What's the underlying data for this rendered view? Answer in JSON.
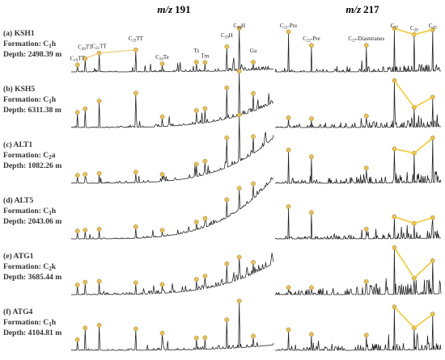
{
  "chart_data": {
    "type": "line",
    "chart_kind": "chromatogram panels",
    "columns": [
      {
        "id": "m191",
        "label_prefix": "m/z",
        "label_value": "191"
      },
      {
        "id": "m217",
        "label_prefix": "m/z",
        "label_value": "217"
      }
    ],
    "samples": [
      {
        "id": "a",
        "name": "(a) KSH1",
        "formation_prefix": "Formation: C",
        "formation_sub": "1",
        "formation_suffix": "h",
        "depth": "Depth: 2498.39 m",
        "baseline_rise": 0.06,
        "noise": 0.08
      },
      {
        "id": "b",
        "name": "(b) KSH5",
        "formation_prefix": "Formation: C",
        "formation_sub": "1",
        "formation_suffix": "h",
        "depth": "Depth: 6311.38 m",
        "baseline_rise": 0.55,
        "noise": 0.1
      },
      {
        "id": "c",
        "name": "(c) ALT1",
        "formation_prefix": "Formation: C",
        "formation_sub": "2",
        "formation_suffix": "a",
        "depth": "Depth: 1082.26 m",
        "baseline_rise": 1.0,
        "noise": 0.12
      },
      {
        "id": "d",
        "name": "(d) ALT5",
        "formation_prefix": "Formation: C",
        "formation_sub": "1",
        "formation_suffix": "h",
        "depth": "Depth: 2043.06 m",
        "baseline_rise": 1.35,
        "noise": 0.08
      },
      {
        "id": "e",
        "name": "(e) ATG1",
        "formation_prefix": "Formation: C",
        "formation_sub": "2",
        "formation_suffix": "k",
        "depth": "Depth: 3685.44 m",
        "baseline_rise": 0.7,
        "noise": 0.16
      },
      {
        "id": "f",
        "name": "(f) ATG4",
        "formation_prefix": "Formation: C",
        "formation_sub": "1",
        "formation_suffix": "h",
        "depth": "Depth: 4104.81 m",
        "baseline_rise": 0.12,
        "noise": 0.1
      }
    ],
    "m191_compound_labels": [
      {
        "key": "C19TT",
        "base": "C",
        "sub": "19",
        "suffix": "TT"
      },
      {
        "key": "C20TT",
        "base": "C",
        "sub": "20",
        "suffix": "TT"
      },
      {
        "key": "C21TT",
        "base": "C",
        "sub": "21",
        "suffix": "TT"
      },
      {
        "key": "C23TT",
        "base": "C",
        "sub": "23",
        "suffix": "TT"
      },
      {
        "key": "C24Te",
        "base": "C",
        "sub": "24",
        "suffix": "Te"
      },
      {
        "key": "Ts",
        "base": "Ts",
        "sub": "",
        "suffix": ""
      },
      {
        "key": "Tm",
        "base": "Tm",
        "sub": "",
        "suffix": ""
      },
      {
        "key": "C29H",
        "base": "C",
        "sub": "29",
        "suffix": "H"
      },
      {
        "key": "C30H",
        "base": "C",
        "sub": "30",
        "suffix": "H"
      },
      {
        "key": "Ga",
        "base": "Ga",
        "sub": "",
        "suffix": ""
      }
    ],
    "m217_compound_labels": [
      {
        "key": "C21Pre",
        "base": "C",
        "sub": "21",
        "suffix": "-Pre"
      },
      {
        "key": "C22Pre",
        "base": "C",
        "sub": "22",
        "suffix": "-Pre"
      },
      {
        "key": "C27Dia",
        "base": "C",
        "sub": "27",
        "suffix": "-Diasteranes"
      },
      {
        "key": "C27",
        "base": "C",
        "sub": "27",
        "suffix": ""
      },
      {
        "key": "C28",
        "base": "C",
        "sub": "28",
        "suffix": ""
      },
      {
        "key": "C29",
        "base": "C",
        "sub": "29",
        "suffix": ""
      }
    ],
    "m191_peak_positions": [
      0.03,
      0.07,
      0.14,
      0.32,
      0.45,
      0.62,
      0.66,
      0.77,
      0.83,
      0.9
    ],
    "m191_peak_heights": {
      "a": [
        0.12,
        0.26,
        0.38,
        0.45,
        0.14,
        0.17,
        0.16,
        0.5,
        0.9,
        0.14
      ],
      "b": [
        0.3,
        0.38,
        0.55,
        0.72,
        0.18,
        0.26,
        0.28,
        0.65,
        0.95,
        0.36
      ],
      "c": [
        0.14,
        0.16,
        0.18,
        0.2,
        0.12,
        0.24,
        0.26,
        0.62,
        1.0,
        0.34
      ],
      "d": [
        0.14,
        0.16,
        0.18,
        0.22,
        0.1,
        0.14,
        0.16,
        0.36,
        0.44,
        0.3
      ],
      "e": [
        0.18,
        0.24,
        0.26,
        0.22,
        0.16,
        0.2,
        0.24,
        0.4,
        0.46,
        0.22
      ],
      "f": [
        0.2,
        0.46,
        0.52,
        0.44,
        0.34,
        0.22,
        0.22,
        0.6,
        1.0,
        0.2
      ]
    },
    "m217_peak_positions": [
      0.08,
      0.22,
      0.55,
      0.72,
      0.84,
      0.95
    ],
    "m217_peak_heights": {
      "a": [
        0.85,
        0.55,
        0.55,
        0.92,
        0.78,
        0.88
      ],
      "b": [
        0.18,
        0.16,
        0.22,
        1.0,
        0.4,
        0.62
      ],
      "c": [
        0.7,
        0.55,
        0.3,
        0.72,
        0.62,
        0.95
      ],
      "d": [
        0.68,
        0.55,
        0.18,
        0.45,
        0.3,
        0.42
      ],
      "e": [
        0.12,
        0.12,
        0.25,
        1.0,
        0.32,
        0.7
      ],
      "f": [
        0.42,
        0.32,
        0.3,
        0.92,
        0.45,
        0.75
      ]
    },
    "sterane_trend_keys": [
      "C27",
      "C28",
      "C29"
    ]
  },
  "colors": {
    "trace": "#1a1a1a",
    "marker": "#e8c25c",
    "trend": "#f2c83c",
    "label": "#333333"
  }
}
